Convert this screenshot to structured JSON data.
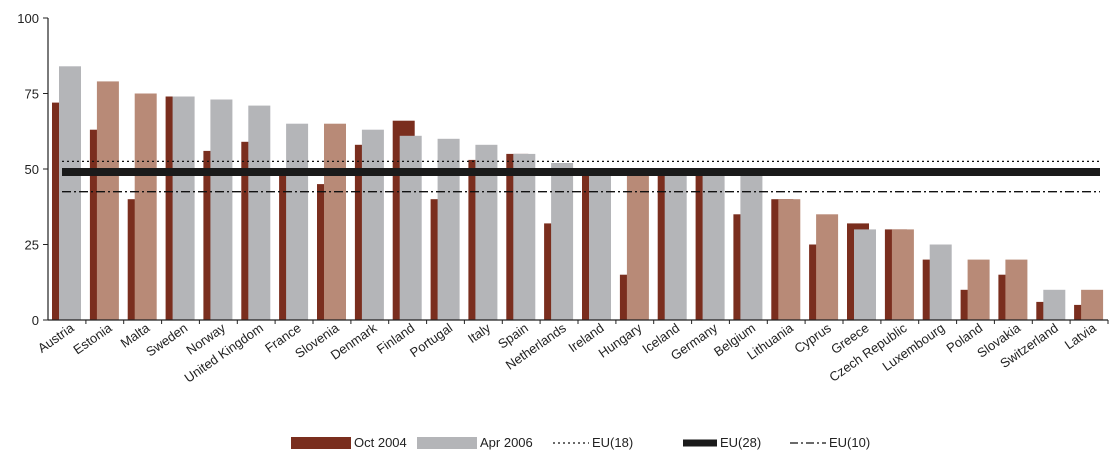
{
  "chart_data": {
    "type": "bar",
    "ylim": [
      0,
      100
    ],
    "yticks": [
      0,
      25,
      50,
      75,
      100
    ],
    "grid": false,
    "legend_position": "bottom",
    "categories": [
      "Austria",
      "Estonia",
      "Malta",
      "Sweden",
      "Norway",
      "United Kingdom",
      "France",
      "Slovenia",
      "Denmark",
      "Finland",
      "Portugal",
      "Italy",
      "Spain",
      "Netherlands",
      "Ireland",
      "Hungary",
      "Iceland",
      "Germany",
      "Belgium",
      "Lithuania",
      "Cyprus",
      "Greece",
      "Czech Republic",
      "Luxembourg",
      "Poland",
      "Slovakia",
      "Switzerland",
      "Latvia"
    ],
    "series": [
      {
        "name": "Oct 2004",
        "color": "#7a2e1e",
        "values": [
          72,
          63,
          40,
          74,
          56,
          59,
          50,
          45,
          58,
          66,
          40,
          53,
          55,
          32,
          49,
          15,
          50,
          50,
          35,
          40,
          25,
          32,
          30,
          20,
          10,
          15,
          6,
          5
        ]
      },
      {
        "name": "Apr 2006",
        "color": "#b4b5b8",
        "values": [
          84,
          79,
          75,
          74,
          73,
          71,
          65,
          65,
          63,
          61,
          60,
          58,
          55,
          52,
          50,
          49,
          48,
          48,
          48,
          40,
          35,
          30,
          30,
          25,
          20,
          20,
          10,
          10
        ]
      }
    ],
    "reference_lines": [
      {
        "name": "EU(18)",
        "value": 52.5,
        "style": "dotted"
      },
      {
        "name": "EU(28)",
        "value": 49,
        "style": "thick"
      },
      {
        "name": "EU(10)",
        "value": 42.5,
        "style": "dashdot"
      }
    ],
    "new_member_bar_color": "#b88a77"
  }
}
